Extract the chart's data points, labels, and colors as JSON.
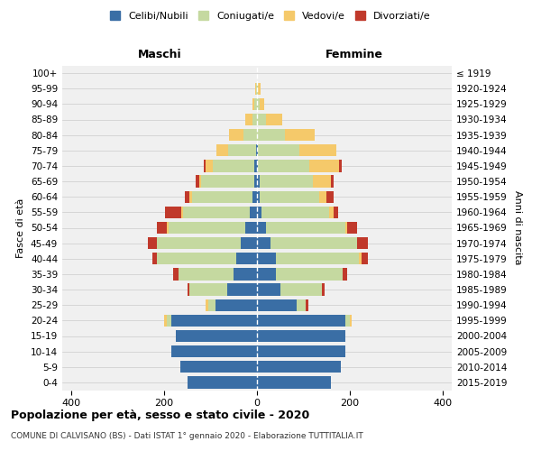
{
  "age_groups": [
    "0-4",
    "5-9",
    "10-14",
    "15-19",
    "20-24",
    "25-29",
    "30-34",
    "35-39",
    "40-44",
    "45-49",
    "50-54",
    "55-59",
    "60-64",
    "65-69",
    "70-74",
    "75-79",
    "80-84",
    "85-89",
    "90-94",
    "95-99",
    "100+"
  ],
  "birth_years": [
    "2015-2019",
    "2010-2014",
    "2005-2009",
    "2000-2004",
    "1995-1999",
    "1990-1994",
    "1985-1989",
    "1980-1984",
    "1975-1979",
    "1970-1974",
    "1965-1969",
    "1960-1964",
    "1955-1959",
    "1950-1954",
    "1945-1949",
    "1940-1944",
    "1935-1939",
    "1930-1934",
    "1925-1929",
    "1920-1924",
    "≤ 1919"
  ],
  "male": {
    "celibi": [
      150,
      165,
      185,
      175,
      185,
      90,
      65,
      50,
      45,
      35,
      25,
      15,
      10,
      5,
      5,
      2,
      0,
      0,
      0,
      0,
      0
    ],
    "coniugati": [
      0,
      0,
      0,
      0,
      10,
      15,
      80,
      120,
      170,
      180,
      165,
      145,
      130,
      115,
      90,
      60,
      30,
      10,
      5,
      2,
      0
    ],
    "vedovi": [
      0,
      0,
      0,
      0,
      5,
      5,
      0,
      0,
      0,
      0,
      5,
      3,
      5,
      5,
      15,
      25,
      30,
      15,
      5,
      2,
      0
    ],
    "divorziati": [
      0,
      0,
      0,
      0,
      0,
      0,
      5,
      10,
      10,
      20,
      20,
      35,
      10,
      8,
      5,
      0,
      0,
      0,
      0,
      0,
      0
    ]
  },
  "female": {
    "nubili": [
      160,
      180,
      190,
      190,
      190,
      85,
      50,
      40,
      40,
      30,
      20,
      10,
      5,
      5,
      2,
      2,
      0,
      0,
      0,
      0,
      0
    ],
    "coniugate": [
      0,
      0,
      0,
      0,
      10,
      20,
      90,
      145,
      180,
      185,
      170,
      145,
      130,
      115,
      110,
      90,
      60,
      20,
      5,
      2,
      0
    ],
    "vedove": [
      0,
      0,
      0,
      0,
      5,
      0,
      0,
      0,
      5,
      0,
      5,
      10,
      15,
      40,
      65,
      80,
      65,
      35,
      10,
      5,
      0
    ],
    "divorziate": [
      0,
      0,
      0,
      0,
      0,
      5,
      5,
      10,
      15,
      25,
      20,
      10,
      15,
      5,
      5,
      0,
      0,
      0,
      0,
      0,
      0
    ]
  },
  "colors": {
    "celibi": "#3A6EA5",
    "coniugati": "#C5D9A0",
    "vedovi": "#F5C96A",
    "divorziati": "#C0392B"
  },
  "xlim": 420,
  "title": "Popolazione per età, sesso e stato civile - 2020",
  "subtitle": "COMUNE DI CALVISANO (BS) - Dati ISTAT 1° gennaio 2020 - Elaborazione TUTTITALIA.IT",
  "ylabel_left": "Fasce di età",
  "ylabel_right": "Anni di nascita",
  "xlabel_left": "Maschi",
  "xlabel_right": "Femmine",
  "legend_labels": [
    "Celibi/Nubili",
    "Coniugati/e",
    "Vedovi/e",
    "Divorziati/e"
  ],
  "background_color": "#ffffff",
  "plot_bg": "#f0f0f0"
}
